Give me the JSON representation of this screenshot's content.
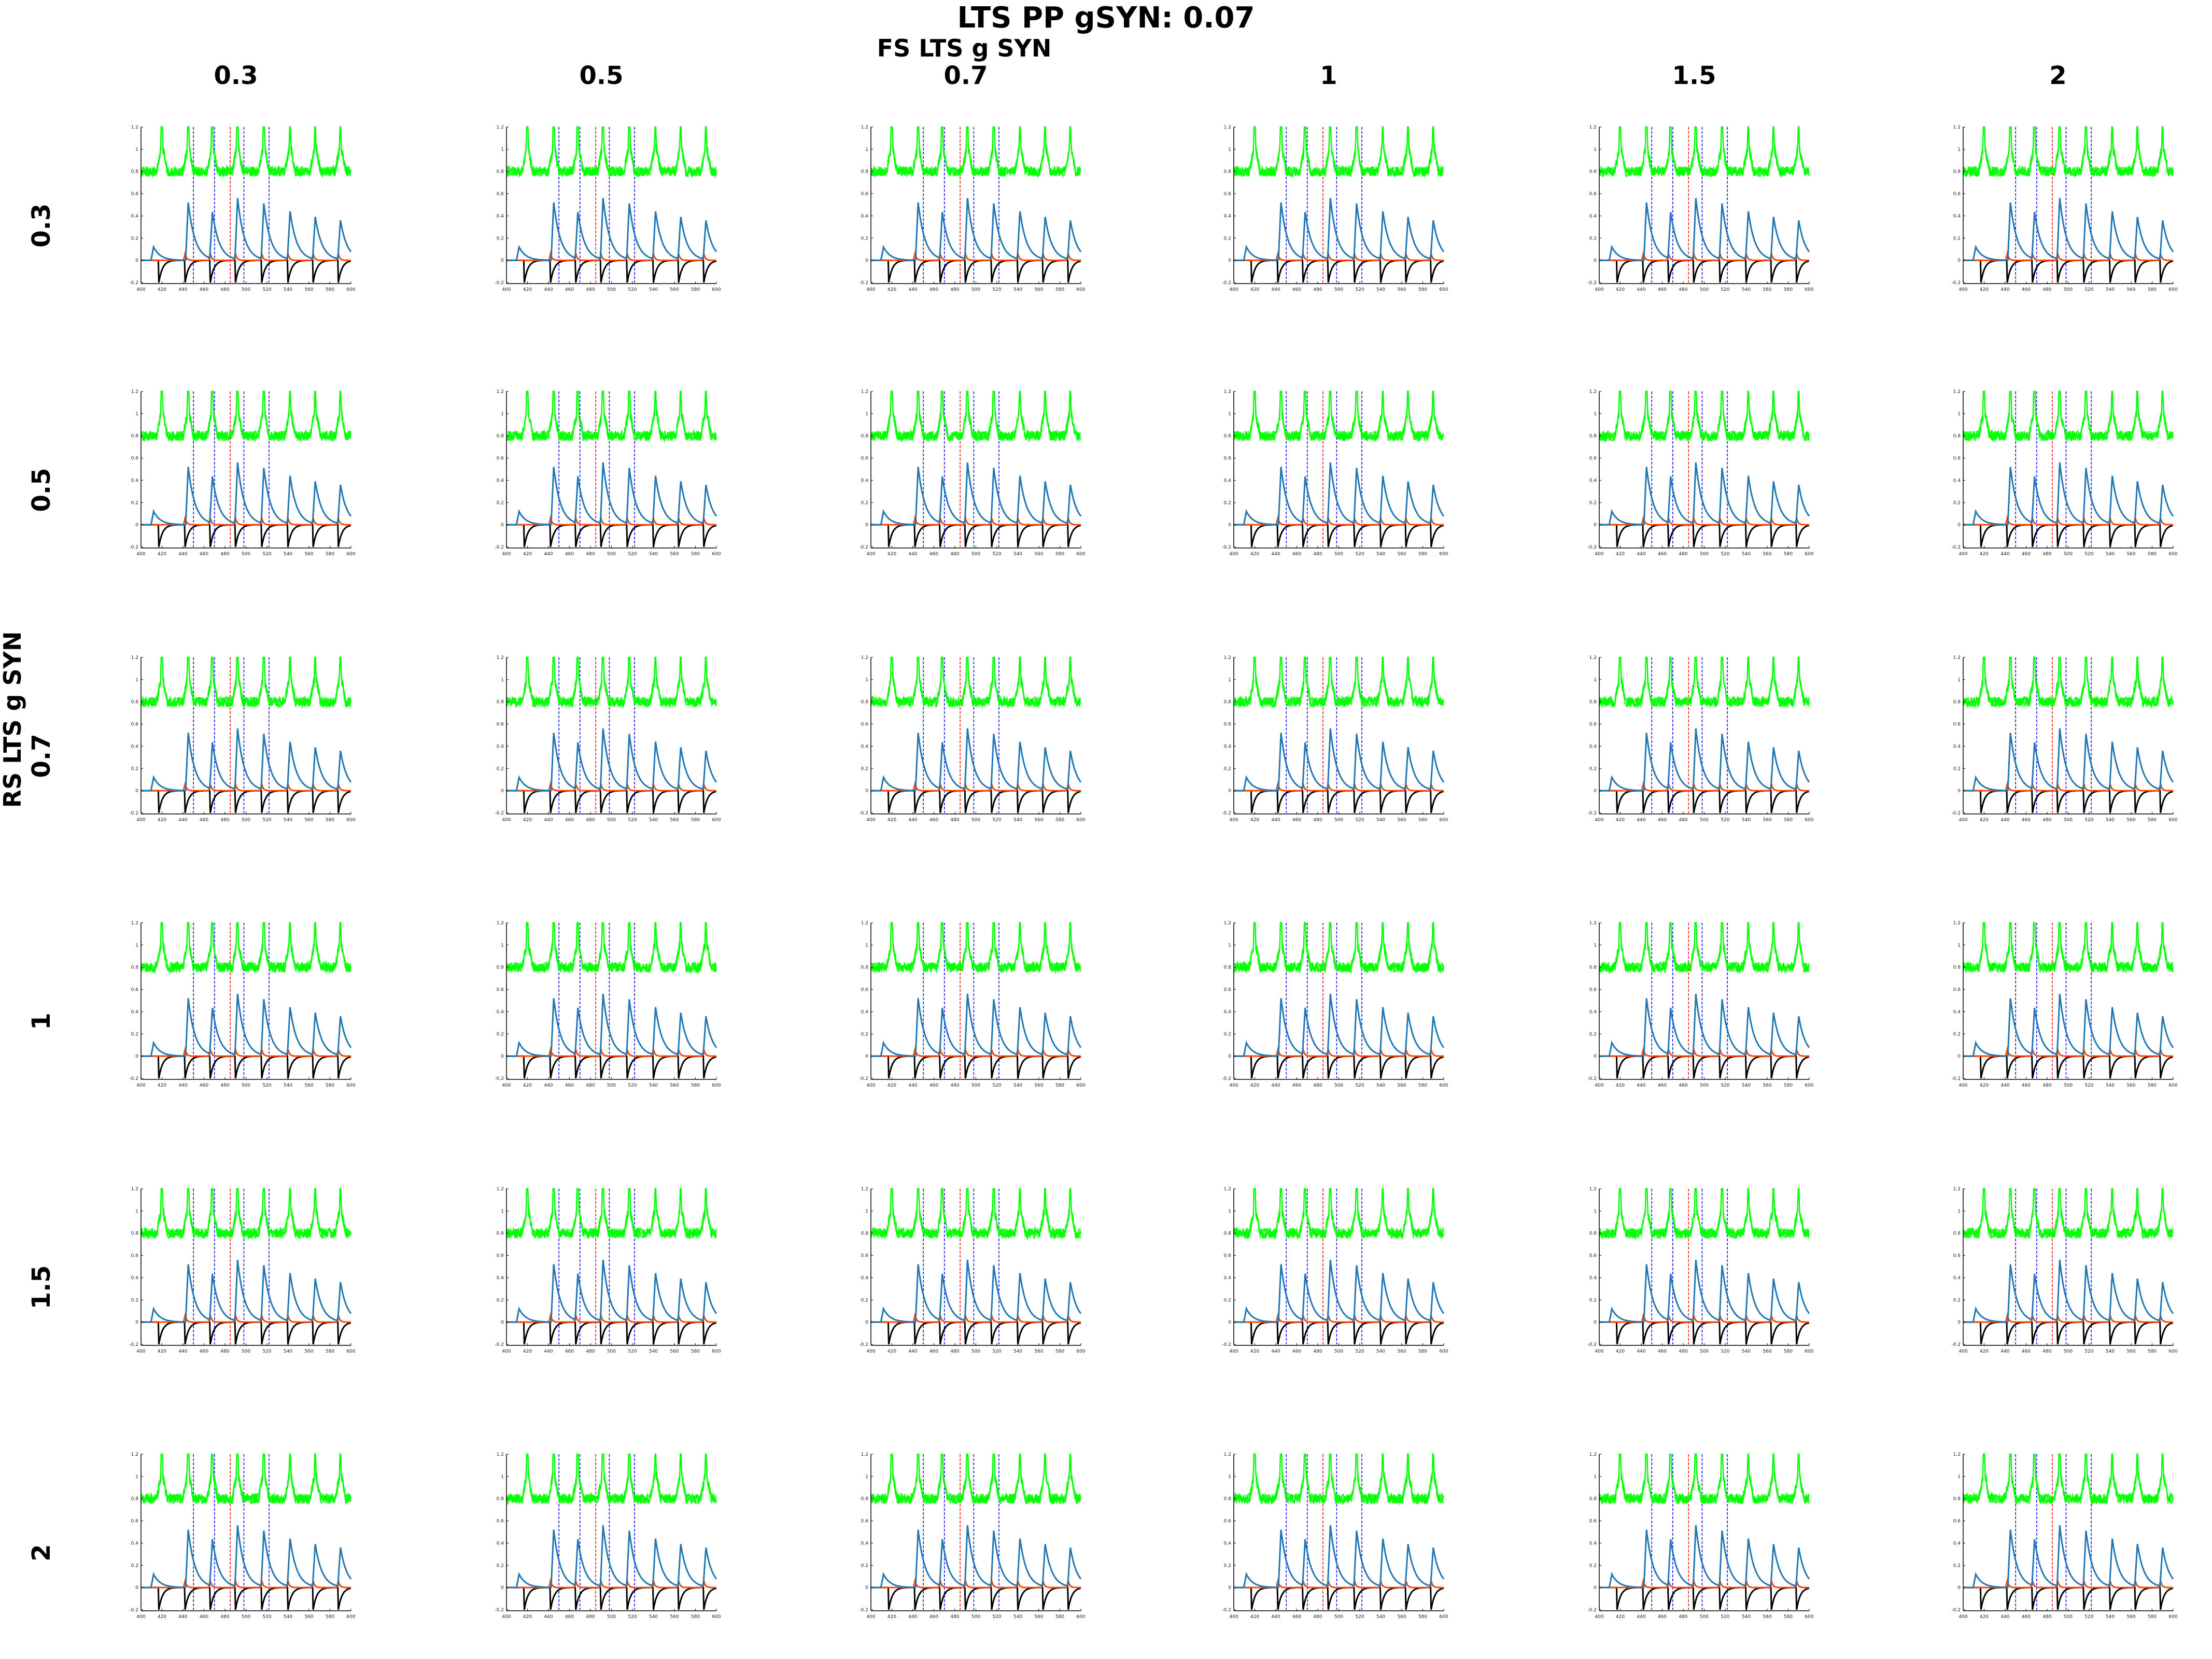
{
  "figure": {
    "title": "LTS PP gSYN: 0.07",
    "col_axis_title": "FS LTS g SYN",
    "row_axis_title": "RS LTS g SYN",
    "col_values": [
      "0.3",
      "0.5",
      "0.7",
      "1",
      "1.5",
      "2"
    ],
    "row_values": [
      "0.3",
      "0.5",
      "0.7",
      "1",
      "1.5",
      "2"
    ]
  },
  "chart_data": {
    "type": "line",
    "layout": "6x6 small multiples, identical axes",
    "x_ticks": [
      400,
      420,
      440,
      460,
      480,
      500,
      520,
      540,
      560,
      580,
      600
    ],
    "y_ticks": [
      -0.2,
      0,
      0.2,
      0.4,
      0.6,
      0.8,
      1,
      1.2
    ],
    "xlim": [
      400,
      600
    ],
    "ylim": [
      -0.2,
      1.2
    ],
    "series": [
      {
        "name": "",
        "color": "#00ff00",
        "baseline": 0.8,
        "peak_times": [
          420,
          445,
          468,
          492,
          517,
          542,
          566,
          590
        ],
        "peak_height": 1.2
      },
      {
        "name": "",
        "color": "#1f77b4",
        "peak_times": [
          412,
          445,
          468,
          492,
          517,
          542,
          566,
          590
        ],
        "peak_values": [
          0.12,
          0.52,
          0.42,
          0.55,
          0.5,
          0.43,
          0.38,
          0.35
        ]
      },
      {
        "name": "",
        "color": "#ff4500",
        "peak_times": [
          442,
          466,
          490,
          515,
          540,
          564,
          588
        ],
        "peak_value": 0.06
      },
      {
        "name": "",
        "color": "#000000",
        "min": -0.2,
        "max": 0,
        "reset_times": [
          417,
          442,
          466,
          490,
          515,
          540,
          564,
          588
        ]
      }
    ],
    "vertical_markers": [
      {
        "color": "#0000ff",
        "x": [
          450,
          470,
          498,
          522
        ]
      },
      {
        "color": "#ff0000",
        "x": [
          485
        ]
      }
    ]
  }
}
